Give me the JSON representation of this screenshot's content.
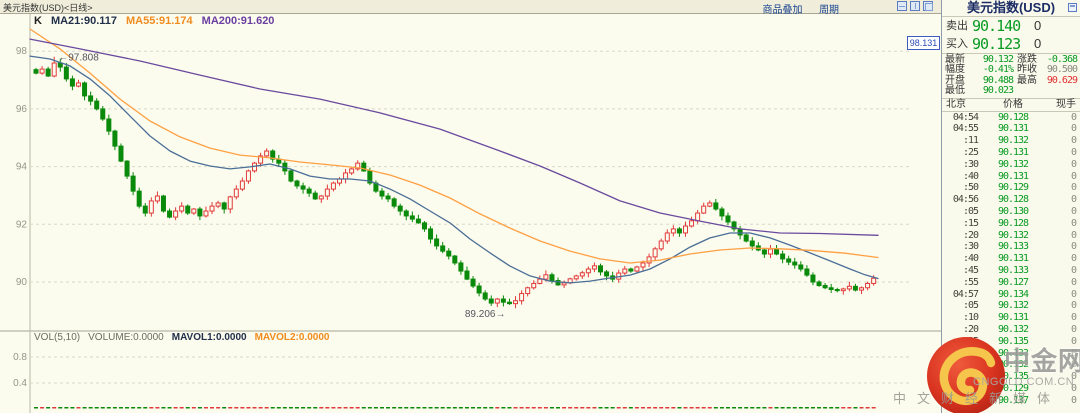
{
  "colors": {
    "up": "#e23a3a",
    "down": "#0a8a0a",
    "ma21": "#4a6e96",
    "ma55": "#ffa042",
    "ma200": "#6a4a9e",
    "grid": "#d9d9c8",
    "accent_blue": "#2b4ab8",
    "panel_green": "#089a22",
    "panel_red": "#e03030"
  },
  "topbar": {
    "title": "美元指数(USD)<日线>",
    "menu_overlay": "商品叠加",
    "menu_period": "周期"
  },
  "chart": {
    "indicator_k": "K",
    "indicator_ma21": "MA21:90.117",
    "indicator_ma55": "MA55:91.174",
    "indicator_ma200": "MA200:91.620",
    "vol_label": "VOL(5,10)",
    "vol_volume": "VOLUME:0.0000",
    "vol_mavol1": "MAVOL1:0.0000",
    "vol_mavol2": "MAVOL2:0.0000",
    "high_label": "97.808",
    "low_label": "89.206",
    "crosshair_price": "98.131"
  },
  "chart_data": {
    "type": "candlestick",
    "title": "美元指数(USD) 日线",
    "price_ticks": [
      98,
      96,
      94,
      92,
      90
    ],
    "vol_ticks": [
      0.8,
      0.4
    ],
    "high_annotation": {
      "index": 3,
      "value": 97.808
    },
    "low_annotation": {
      "index": 78,
      "value": 89.206
    },
    "closes": [
      97.24,
      97.38,
      97.14,
      97.59,
      97.45,
      97.04,
      96.79,
      96.9,
      96.45,
      96.27,
      96.0,
      95.65,
      95.23,
      94.71,
      94.19,
      93.67,
      93.15,
      92.63,
      92.39,
      92.81,
      92.98,
      92.46,
      92.25,
      92.46,
      92.63,
      92.39,
      92.53,
      92.29,
      92.46,
      92.63,
      92.74,
      92.53,
      92.95,
      93.22,
      93.5,
      93.85,
      94.12,
      94.37,
      94.54,
      94.26,
      94.12,
      93.85,
      93.5,
      93.33,
      93.22,
      93.08,
      92.88,
      92.98,
      93.22,
      93.43,
      93.57,
      93.78,
      93.92,
      94.12,
      93.85,
      93.43,
      93.15,
      92.98,
      92.88,
      92.63,
      92.46,
      92.29,
      92.18,
      92.05,
      91.84,
      91.49,
      91.25,
      91.07,
      90.9,
      90.66,
      90.38,
      90.1,
      89.86,
      89.62,
      89.41,
      89.27,
      89.41,
      89.3,
      89.25,
      89.35,
      89.6,
      89.8,
      89.95,
      90.1,
      90.25,
      90.05,
      89.9,
      89.97,
      90.11,
      90.21,
      90.32,
      90.45,
      90.56,
      90.35,
      90.21,
      90.1,
      90.31,
      90.45,
      90.38,
      90.52,
      90.66,
      90.87,
      91.15,
      91.42,
      91.7,
      91.84,
      91.7,
      91.94,
      92.12,
      92.39,
      92.63,
      92.74,
      92.53,
      92.29,
      92.08,
      91.84,
      91.63,
      91.42,
      91.25,
      91.11,
      90.97,
      91.14,
      90.97,
      90.8,
      90.69,
      90.59,
      90.45,
      90.24,
      90.0,
      89.88,
      89.8,
      89.74,
      89.7,
      89.76,
      89.85,
      89.72,
      89.8,
      89.95,
      90.13
    ],
    "ma21": [
      [
        30,
        97.83
      ],
      [
        50,
        97.73
      ],
      [
        70,
        97.49
      ],
      [
        90,
        97.04
      ],
      [
        110,
        96.45
      ],
      [
        130,
        95.75
      ],
      [
        150,
        95.06
      ],
      [
        170,
        94.54
      ],
      [
        190,
        94.19
      ],
      [
        210,
        94.02
      ],
      [
        230,
        93.92
      ],
      [
        250,
        93.99
      ],
      [
        270,
        94.09
      ],
      [
        290,
        93.92
      ],
      [
        310,
        93.67
      ],
      [
        330,
        93.57
      ],
      [
        350,
        93.57
      ],
      [
        370,
        93.5
      ],
      [
        390,
        93.22
      ],
      [
        410,
        92.88
      ],
      [
        430,
        92.46
      ],
      [
        450,
        92.05
      ],
      [
        470,
        91.49
      ],
      [
        490,
        91.01
      ],
      [
        510,
        90.55
      ],
      [
        530,
        90.21
      ],
      [
        550,
        90.03
      ],
      [
        570,
        89.97
      ],
      [
        590,
        90.03
      ],
      [
        610,
        90.14
      ],
      [
        630,
        90.24
      ],
      [
        650,
        90.45
      ],
      [
        670,
        90.8
      ],
      [
        690,
        91.21
      ],
      [
        710,
        91.53
      ],
      [
        730,
        91.7
      ],
      [
        750,
        91.7
      ],
      [
        770,
        91.53
      ],
      [
        790,
        91.28
      ],
      [
        810,
        91.01
      ],
      [
        830,
        90.73
      ],
      [
        850,
        90.45
      ],
      [
        865,
        90.25
      ],
      [
        878,
        90.12
      ]
    ],
    "ma55": [
      [
        30,
        98.77
      ],
      [
        60,
        98.08
      ],
      [
        90,
        97.24
      ],
      [
        120,
        96.34
      ],
      [
        150,
        95.58
      ],
      [
        180,
        95.03
      ],
      [
        210,
        94.64
      ],
      [
        240,
        94.4
      ],
      [
        270,
        94.3
      ],
      [
        300,
        94.16
      ],
      [
        330,
        94.06
      ],
      [
        360,
        93.95
      ],
      [
        390,
        93.71
      ],
      [
        420,
        93.36
      ],
      [
        450,
        92.91
      ],
      [
        480,
        92.36
      ],
      [
        510,
        91.87
      ],
      [
        540,
        91.42
      ],
      [
        570,
        91.07
      ],
      [
        600,
        90.8
      ],
      [
        630,
        90.66
      ],
      [
        660,
        90.76
      ],
      [
        690,
        90.97
      ],
      [
        720,
        91.11
      ],
      [
        750,
        91.18
      ],
      [
        780,
        91.15
      ],
      [
        810,
        91.1
      ],
      [
        845,
        91.0
      ],
      [
        878,
        90.85
      ]
    ],
    "ma200": [
      [
        30,
        98.42
      ],
      [
        80,
        98.08
      ],
      [
        140,
        97.66
      ],
      [
        200,
        97.17
      ],
      [
        260,
        96.69
      ],
      [
        320,
        96.34
      ],
      [
        380,
        95.86
      ],
      [
        440,
        95.3
      ],
      [
        500,
        94.54
      ],
      [
        540,
        94.02
      ],
      [
        580,
        93.43
      ],
      [
        620,
        92.81
      ],
      [
        660,
        92.39
      ],
      [
        700,
        92.11
      ],
      [
        740,
        91.84
      ],
      [
        780,
        91.7
      ],
      [
        820,
        91.68
      ],
      [
        878,
        91.62
      ]
    ]
  },
  "quote_panel": {
    "title": "美元指数(USD)",
    "sell": {
      "label": "卖出",
      "price": "90.140",
      "qty": "0"
    },
    "buy": {
      "label": "买入",
      "price": "90.123",
      "qty": "0"
    },
    "stats": {
      "latest": {
        "label": "最新",
        "value": "90.132"
      },
      "change": {
        "label": "涨跌",
        "value": "-0.368"
      },
      "range": {
        "label": "幅度",
        "value": "-0.41%"
      },
      "prev_close": {
        "label": "昨收",
        "value": "90.500"
      },
      "open": {
        "label": "开盘",
        "value": "90.488"
      },
      "high": {
        "label": "最高",
        "value": "90.629"
      },
      "low": {
        "label": "最低",
        "value": "90.023"
      }
    },
    "table": {
      "headers": [
        "北京",
        "价格",
        "现手"
      ],
      "rows": [
        [
          "04:54",
          "90.128",
          "0"
        ],
        [
          "04:55",
          "90.131",
          "0"
        ],
        [
          ":11",
          "90.132",
          "0"
        ],
        [
          ":25",
          "90.131",
          "0"
        ],
        [
          ":30",
          "90.132",
          "0"
        ],
        [
          ":40",
          "90.131",
          "0"
        ],
        [
          ":50",
          "90.129",
          "0"
        ],
        [
          "04:56",
          "90.128",
          "0"
        ],
        [
          ":05",
          "90.130",
          "0"
        ],
        [
          ":15",
          "90.128",
          "0"
        ],
        [
          ":20",
          "90.132",
          "0"
        ],
        [
          ":30",
          "90.133",
          "0"
        ],
        [
          ":40",
          "90.131",
          "0"
        ],
        [
          ":45",
          "90.133",
          "0"
        ],
        [
          ":55",
          "90.127",
          "0"
        ],
        [
          "04:57",
          "90.134",
          "0"
        ],
        [
          ":05",
          "90.132",
          "0"
        ],
        [
          ":10",
          "90.131",
          "0"
        ],
        [
          ":20",
          "90.132",
          "0"
        ],
        [
          ":25",
          "90.135",
          "0"
        ],
        [
          ":30",
          "90.133",
          "0"
        ],
        [
          ":35",
          "90.132",
          "0"
        ],
        [
          ":40",
          "90.135",
          "0"
        ],
        [
          ":45",
          "90.129",
          "0"
        ],
        [
          ":55",
          "90.137",
          "0"
        ]
      ]
    }
  },
  "watermark": {
    "brand": "中金网",
    "domain": "CNGOLD.COM.CN",
    "slogan": "中文财经新媒体"
  }
}
